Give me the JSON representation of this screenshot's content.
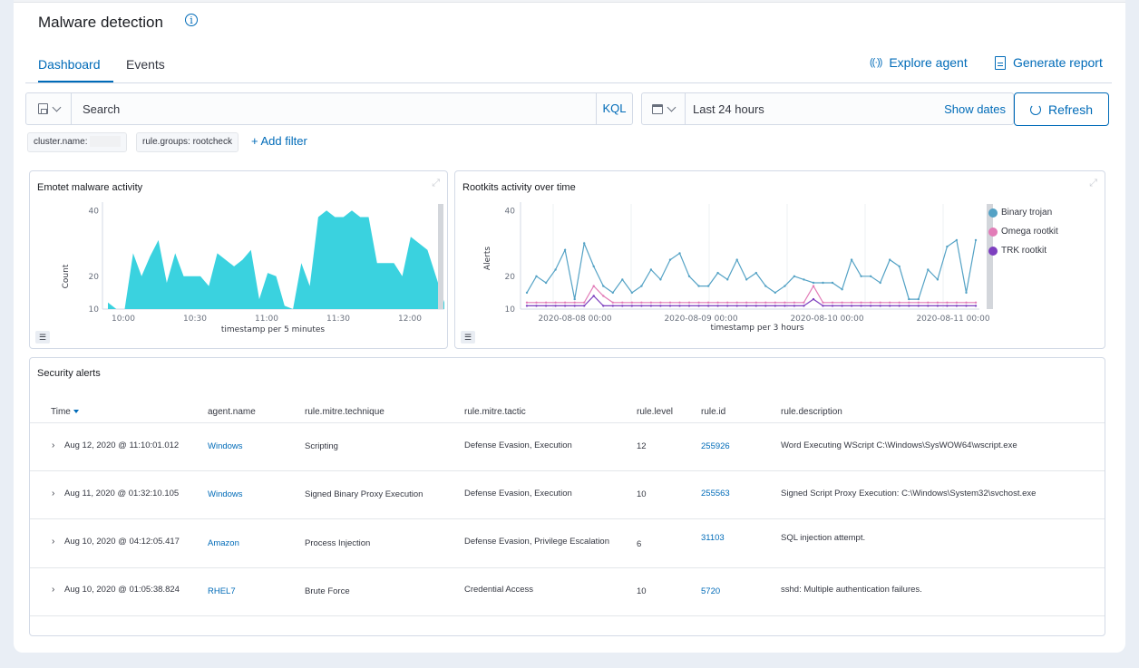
{
  "header": {
    "title": "Malware detection",
    "info_icon": "info-icon"
  },
  "tabs": [
    {
      "label": "Dashboard",
      "active": true
    },
    {
      "label": "Events",
      "active": false
    }
  ],
  "actions": {
    "explore_agent": "Explore agent",
    "generate_report": "Generate report"
  },
  "search": {
    "placeholder": "Search",
    "language": "KQL"
  },
  "date": {
    "range": "Last 24 hours",
    "show_dates": "Show dates"
  },
  "refresh_label": "Refresh",
  "filters": [
    {
      "label": "cluster.name:"
    },
    {
      "label": "rule.groups: rootcheck"
    }
  ],
  "add_filter": "+ Add filter",
  "colors": {
    "accent": "#006bb8",
    "emotet": "#3ad2df",
    "binary_trojan": "#54a2c5",
    "omega_rootkit": "#e27cb7",
    "trk_rootkit": "#7d3fbf"
  },
  "emotet": {
    "title": "Emotet malware activity",
    "ylabel": "Count",
    "xlabel": "timestamp per 5 minutes",
    "yticks": [
      "40",
      "20",
      "10"
    ],
    "xticks": [
      "10:00",
      "10:30",
      "11:00",
      "11:30",
      "12:00"
    ]
  },
  "rootkits": {
    "title": "Rootkits activity over time",
    "ylabel": "Alerts",
    "xlabel": "timestamp per 3 hours",
    "yticks": [
      "40",
      "20",
      "10"
    ],
    "xticks": [
      "2020-08-08 00:00",
      "2020-08-09 00:00",
      "2020-08-10 00:00",
      "2020-08-11 00:00"
    ],
    "legend": [
      "Binary trojan",
      "Omega rootkit",
      "TRK rootkit"
    ]
  },
  "chart_data": [
    {
      "type": "area",
      "title": "Emotet malware activity",
      "xlabel": "timestamp per 5 minutes",
      "ylabel": "Count",
      "ylim": [
        10,
        42
      ],
      "x_ticks": [
        "10:00",
        "10:30",
        "11:00",
        "11:30",
        "12:00"
      ],
      "series": [
        {
          "values": [
            12,
            10,
            10,
            27,
            20,
            26,
            31,
            18,
            27,
            20,
            20,
            20,
            17,
            27,
            25,
            23,
            25,
            28,
            13,
            21,
            20,
            11,
            10,
            24,
            17,
            38,
            40,
            38,
            38,
            40,
            38,
            38,
            24,
            24,
            24,
            20,
            32,
            30,
            28,
            20,
            12
          ]
        }
      ]
    },
    {
      "type": "line",
      "title": "Rootkits activity over time",
      "xlabel": "timestamp per 3 hours",
      "ylabel": "Alerts",
      "ylim": [
        10,
        42
      ],
      "x_ticks": [
        "2020-08-08 00:00",
        "2020-08-09 00:00",
        "2020-08-10 00:00",
        "2020-08-11 00:00"
      ],
      "series": [
        {
          "name": "Binary trojan",
          "values": [
            15,
            20,
            18,
            22,
            28,
            13,
            30,
            23,
            17,
            15,
            19,
            15,
            17,
            22,
            19,
            25,
            27,
            20,
            17,
            17,
            21,
            19,
            25,
            19,
            21,
            17,
            15,
            17,
            20,
            19,
            18,
            18,
            18,
            16,
            25,
            20,
            20,
            18,
            25,
            23,
            13,
            13,
            22,
            19,
            29,
            31,
            15,
            31
          ]
        },
        {
          "name": "Omega rootkit",
          "values": [
            12,
            12,
            12,
            12,
            12,
            12,
            12,
            17,
            14,
            12,
            12,
            12,
            12,
            12,
            12,
            12,
            12,
            12,
            12,
            12,
            12,
            12,
            12,
            12,
            12,
            12,
            12,
            12,
            12,
            12,
            17,
            12,
            12,
            12,
            12,
            12,
            12,
            12,
            12,
            12,
            12,
            12,
            12,
            12,
            12,
            12,
            12,
            12
          ]
        },
        {
          "name": "TRK rootkit",
          "values": [
            11,
            11,
            11,
            11,
            11,
            11,
            11,
            14,
            11,
            11,
            11,
            11,
            11,
            11,
            11,
            11,
            11,
            11,
            11,
            11,
            11,
            11,
            11,
            11,
            11,
            11,
            11,
            11,
            11,
            11,
            13,
            11,
            11,
            11,
            11,
            11,
            11,
            11,
            11,
            11,
            11,
            11,
            11,
            11,
            11,
            11,
            11,
            11
          ]
        }
      ]
    }
  ],
  "alerts": {
    "title": "Security alerts",
    "columns": [
      "Time",
      "agent.name",
      "rule.mitre.technique",
      "rule.mitre.tactic",
      "rule.level",
      "rule.id",
      "rule.description"
    ],
    "rows": [
      {
        "time": "Aug 12, 2020 @ 11:10:01.012",
        "agent": "Windows",
        "technique": "Scripting",
        "tactic": "Defense Evasion, Execution",
        "level": "12",
        "id": "255926",
        "description": "Word Executing WScript C:\\Windows\\SysWOW64\\wscript.exe"
      },
      {
        "time": "Aug 11, 2020 @ 01:32:10.105",
        "agent": "Windows",
        "technique": "Signed Binary Proxy Execution",
        "tactic": "Defense Evasion, Execution",
        "level": "10",
        "id": "255563",
        "description": "Signed Script Proxy Execution: C:\\Windows\\System32\\svchost.exe"
      },
      {
        "time": "Aug 10, 2020 @ 04:12:05.417",
        "agent": "Amazon",
        "technique": "Process Injection",
        "tactic": "Defense Evasion, Privilege Escalation",
        "level": "6",
        "id": "31103",
        "description": "SQL injection attempt."
      },
      {
        "time": "Aug 10, 2020 @ 01:05:38.824",
        "agent": "RHEL7",
        "technique": "Brute Force",
        "tactic": "Credential Access",
        "level": "10",
        "id": "5720",
        "description": "sshd: Multiple authentication failures."
      }
    ]
  }
}
